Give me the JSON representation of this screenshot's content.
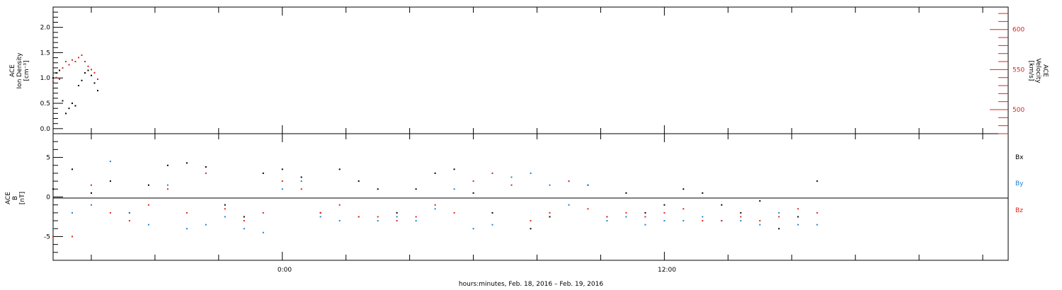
{
  "xlabel": "hours:minutes, Feb. 18, 2016 – Feb. 19, 2016",
  "x_ticks": [
    "0:00",
    "12:00"
  ],
  "colors": {
    "black": "#000000",
    "blue": "#1f7fd6",
    "red": "#e0201b"
  },
  "chart_data": [
    {
      "type": "scatter",
      "panel": "top",
      "ylabel": [
        "ACE",
        "Ion Density",
        "[cm⁻³]"
      ],
      "y_ticks": [
        "0.0",
        "0.5",
        "1.0",
        "1.5",
        "2.0"
      ],
      "ylim": [
        -0.1,
        2.4
      ],
      "y2label": [
        "ACE",
        "Velocity",
        "[km/s]"
      ],
      "y2_ticks": [
        "500",
        "550",
        "600"
      ],
      "y2lim": [
        470,
        628
      ],
      "xlim_hours": [
        -7.2,
        22.8
      ],
      "series": [
        {
          "color": "#000000",
          "axis": "left",
          "x": [
            -7.2,
            -7.1,
            -7.0,
            -6.9,
            -6.8,
            -6.7,
            -6.6,
            -6.5,
            -6.4,
            -6.3,
            -6.2,
            -6.1,
            -6.0,
            -5.9,
            -5.8
          ],
          "y": [
            1.0,
            1.1,
            1.15,
            0.55,
            0.3,
            0.4,
            0.5,
            0.45,
            0.85,
            0.95,
            1.1,
            1.15,
            1.05,
            0.9,
            0.75
          ]
        },
        {
          "color": "#e0201b",
          "axis": "right",
          "x": [
            -7.2,
            -7.1,
            -7.0,
            -6.9,
            -6.8,
            -6.7,
            -6.6,
            -6.5,
            -6.4,
            -6.3,
            -6.2,
            -6.1,
            -6.0,
            -5.9,
            -5.8
          ],
          "y": [
            535,
            540,
            538,
            552,
            560,
            556,
            562,
            560,
            565,
            568,
            560,
            554,
            550,
            546,
            538
          ]
        }
      ]
    },
    {
      "type": "scatter",
      "panel": "bottom",
      "ylabel": [
        "ACE",
        "B",
        "[nT]"
      ],
      "y_ticks": [
        "-5",
        "0",
        "5"
      ],
      "ylim": [
        -8,
        8
      ],
      "xlim_hours": [
        -7.2,
        22.8
      ],
      "legend": [
        "Bx",
        "By",
        "Bz"
      ],
      "series": [
        {
          "name": "Bx",
          "color": "#000000",
          "x": [
            -7.2,
            -6.6,
            -6.0,
            -5.4,
            -4.8,
            -4.2,
            -3.6,
            -3.0,
            -2.4,
            -1.8,
            -1.2,
            -0.6,
            0.0,
            0.6,
            1.2,
            1.8,
            2.4,
            3.0,
            3.6,
            4.2,
            4.8,
            5.4,
            6.0,
            6.6,
            7.2,
            7.8,
            8.4,
            9.0,
            9.6,
            10.2,
            10.8,
            11.4,
            12.0,
            12.6,
            13.2,
            13.8,
            14.4,
            15.0,
            15.6,
            16.2,
            16.8
          ],
          "y": [
            1.0,
            3.5,
            0.5,
            2.0,
            -2.0,
            1.5,
            4.0,
            4.3,
            3.8,
            -1.0,
            -2.5,
            3.0,
            3.5,
            2.5,
            -2.0,
            3.5,
            2.0,
            1.0,
            -2.0,
            1.0,
            3.0,
            3.5,
            0.5,
            -2.0,
            2.5,
            -4.0,
            -2.5,
            2.0,
            1.5,
            -2.5,
            0.5,
            -2.0,
            -1.0,
            1.0,
            0.5,
            -1.0,
            -2.0,
            -0.5,
            -4.0,
            -2.5,
            2.0
          ]
        },
        {
          "name": "By",
          "color": "#1f7fd6",
          "x": [
            -7.2,
            -6.6,
            -6.0,
            -5.4,
            -4.8,
            -4.2,
            -3.6,
            -3.0,
            -2.4,
            -1.8,
            -1.2,
            -0.6,
            0.0,
            0.6,
            1.2,
            1.8,
            2.4,
            3.0,
            3.6,
            4.2,
            4.8,
            5.4,
            6.0,
            6.6,
            7.2,
            7.8,
            8.4,
            9.0,
            9.6,
            10.2,
            10.8,
            11.4,
            12.0,
            12.6,
            13.2,
            13.8,
            14.4,
            15.0,
            15.6,
            16.2,
            16.8
          ],
          "y": [
            -4.0,
            -2.0,
            -1.0,
            4.5,
            -2.0,
            -3.5,
            1.5,
            -4.0,
            -3.5,
            -2.5,
            -4.0,
            -4.5,
            1.0,
            2.0,
            -2.5,
            -3.0,
            -2.5,
            -3.0,
            -2.5,
            -3.0,
            -1.5,
            1.0,
            -4.0,
            -3.5,
            2.5,
            3.0,
            1.5,
            -1.0,
            1.5,
            -3.0,
            -2.5,
            -3.5,
            -3.0,
            -3.0,
            -2.5,
            -3.0,
            -3.0,
            -3.5,
            -2.0,
            -3.5,
            -3.5
          ]
        },
        {
          "name": "Bz",
          "color": "#e0201b",
          "x": [
            -7.2,
            -6.6,
            -6.0,
            -5.4,
            -4.8,
            -4.2,
            -3.6,
            -3.0,
            -2.4,
            -1.8,
            -1.2,
            -0.6,
            0.0,
            0.6,
            1.2,
            1.8,
            2.4,
            3.0,
            3.6,
            4.2,
            4.8,
            5.4,
            6.0,
            6.6,
            7.2,
            7.8,
            8.4,
            9.0,
            9.6,
            10.2,
            10.8,
            11.4,
            12.0,
            12.6,
            13.2,
            13.8,
            14.4,
            15.0,
            15.6,
            16.2,
            16.8
          ],
          "y": [
            -5.0,
            -5.0,
            1.5,
            -2.0,
            -3.0,
            -1.0,
            1.0,
            -2.0,
            3.0,
            -1.5,
            -3.0,
            -2.0,
            2.0,
            1.0,
            -2.0,
            -1.0,
            -2.5,
            -2.5,
            -3.0,
            -2.5,
            -1.0,
            -2.0,
            2.0,
            3.0,
            1.5,
            -3.0,
            -2.0,
            2.0,
            -1.5,
            -2.5,
            -2.0,
            -2.5,
            -2.0,
            -1.5,
            -3.0,
            -3.0,
            -2.5,
            -3.0,
            -2.5,
            -1.5,
            -2.0
          ]
        }
      ]
    }
  ]
}
